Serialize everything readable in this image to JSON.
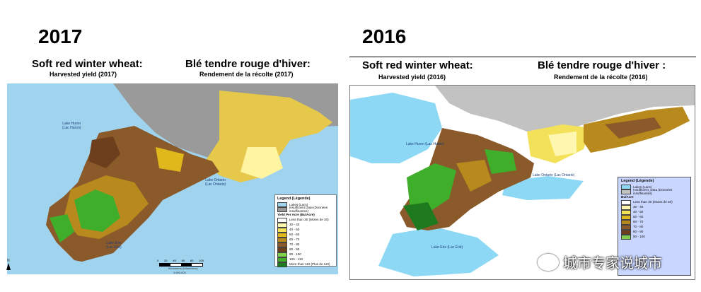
{
  "left": {
    "year": "2017",
    "title_en": "Soft red winter wheat:",
    "subtitle_en": "Harvested yield (2017)",
    "title_fr": "Blé tendre rouge d'hiver:",
    "subtitle_fr": "Rendement de la récolte (2017)",
    "lakes": {
      "huron": "Lake Huron\n(Lac Huron)",
      "erie": "Lake Erie\n(Lac Érié)",
      "ontario": "Lake Ontario\n(Lac Ontario)"
    },
    "legend": {
      "title": "Legend (Légende)",
      "lakes": "Lakes (Lacs)",
      "insufficient": "Insufficient Data (Données insuffisantes)",
      "unit": "Yield Per Acre (Bu/Acre)",
      "classes": [
        "Less than 30 (Moins de 30)",
        "30 - 40",
        "40 - 50",
        "50 - 60",
        "60 - 70",
        "70 - 80",
        "80 - 90",
        "90 - 100",
        "100 - 110",
        "More than 110 (Plus de 110)"
      ]
    },
    "scale": {
      "ticks": [
        "0",
        "20",
        "40",
        "60",
        "80",
        "100"
      ],
      "units": "Kilometers (Kilomètres)",
      "ratio": "1:900,000"
    },
    "north": "N"
  },
  "right": {
    "year": "2016",
    "title_en": "Soft red winter wheat:",
    "subtitle_en": "Harvested yield (2016)",
    "title_fr": "Blé tendre rouge d'hiver :",
    "subtitle_fr": "Rendement de la récolte (2016)",
    "lakes": {
      "huron": "Lake Huron (Lac Huron)",
      "erie": "Lake Erie (Lac Érié)",
      "ontario": "Lake Ontario (Lac Ontario)"
    },
    "legend": {
      "title": "Legend (Légende)",
      "lakes": "Lakes (Lacs)",
      "insufficient": "Insufficient_Data (Données insuffisantes)",
      "unit": "Bu/Acre",
      "classes": [
        "Less than 30 (Moins de 30)",
        "30 - 40",
        "40 - 50",
        "50 - 60",
        "60 - 70",
        "70 - 80",
        "80 - 90",
        "90 - 100"
      ]
    }
  },
  "watermark": "城市专家说城市",
  "colors": {
    "water_left": "#9fd3ee",
    "water_right": "#8dd9f5",
    "insufficient": "#9a9a9a",
    "classes": [
      "#ffffff",
      "#fff7b0",
      "#f4e15a",
      "#e0b81c",
      "#b88a1e",
      "#8b5a2b",
      "#6e3f1c",
      "#7fd04a",
      "#3fae2a",
      "#1f7a1f"
    ]
  }
}
